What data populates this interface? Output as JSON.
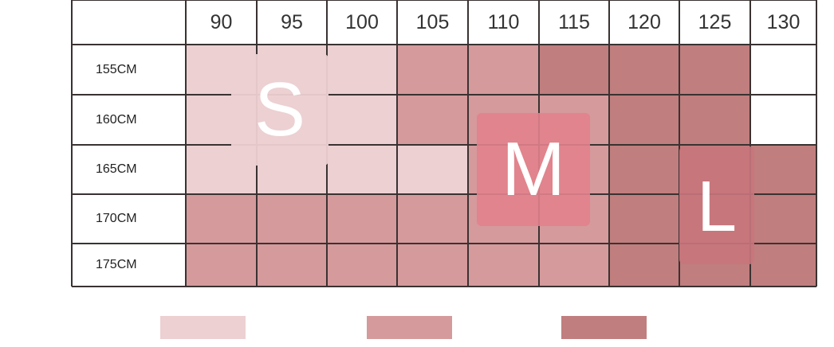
{
  "chart_data": {
    "type": "heatmap",
    "title": "",
    "x_categories": [
      "90",
      "95",
      "100",
      "105",
      "110",
      "115",
      "120",
      "125",
      "130"
    ],
    "y_categories": [
      "155CM",
      "160CM",
      "165CM",
      "170CM",
      "175CM"
    ],
    "cells": [
      [
        "S",
        "S",
        "S",
        "M",
        "M",
        "L",
        "L",
        "L",
        ""
      ],
      [
        "S",
        "S",
        "S",
        "M",
        "M",
        "M",
        "L",
        "L",
        ""
      ],
      [
        "S",
        "S",
        "S",
        "S",
        "M",
        "M",
        "L",
        "L",
        "L"
      ],
      [
        "M",
        "M",
        "M",
        "M",
        "M",
        "M",
        "L",
        "L",
        "L"
      ],
      [
        "M",
        "M",
        "M",
        "M",
        "M",
        "M",
        "L",
        "L",
        "L"
      ]
    ],
    "size_labels": [
      "S",
      "M",
      "L"
    ],
    "colors": {
      "S": "#ecd0d2",
      "M": "#d59a9c",
      "L": "#c07e7e",
      "empty": "#ffffff",
      "grid": "#3a3232"
    },
    "legend": [
      {
        "size": "S",
        "color": "#ecd0d2"
      },
      {
        "size": "M",
        "color": "#d59a9c"
      },
      {
        "size": "L",
        "color": "#c07e7e"
      }
    ],
    "legend_placement": "bottom"
  }
}
